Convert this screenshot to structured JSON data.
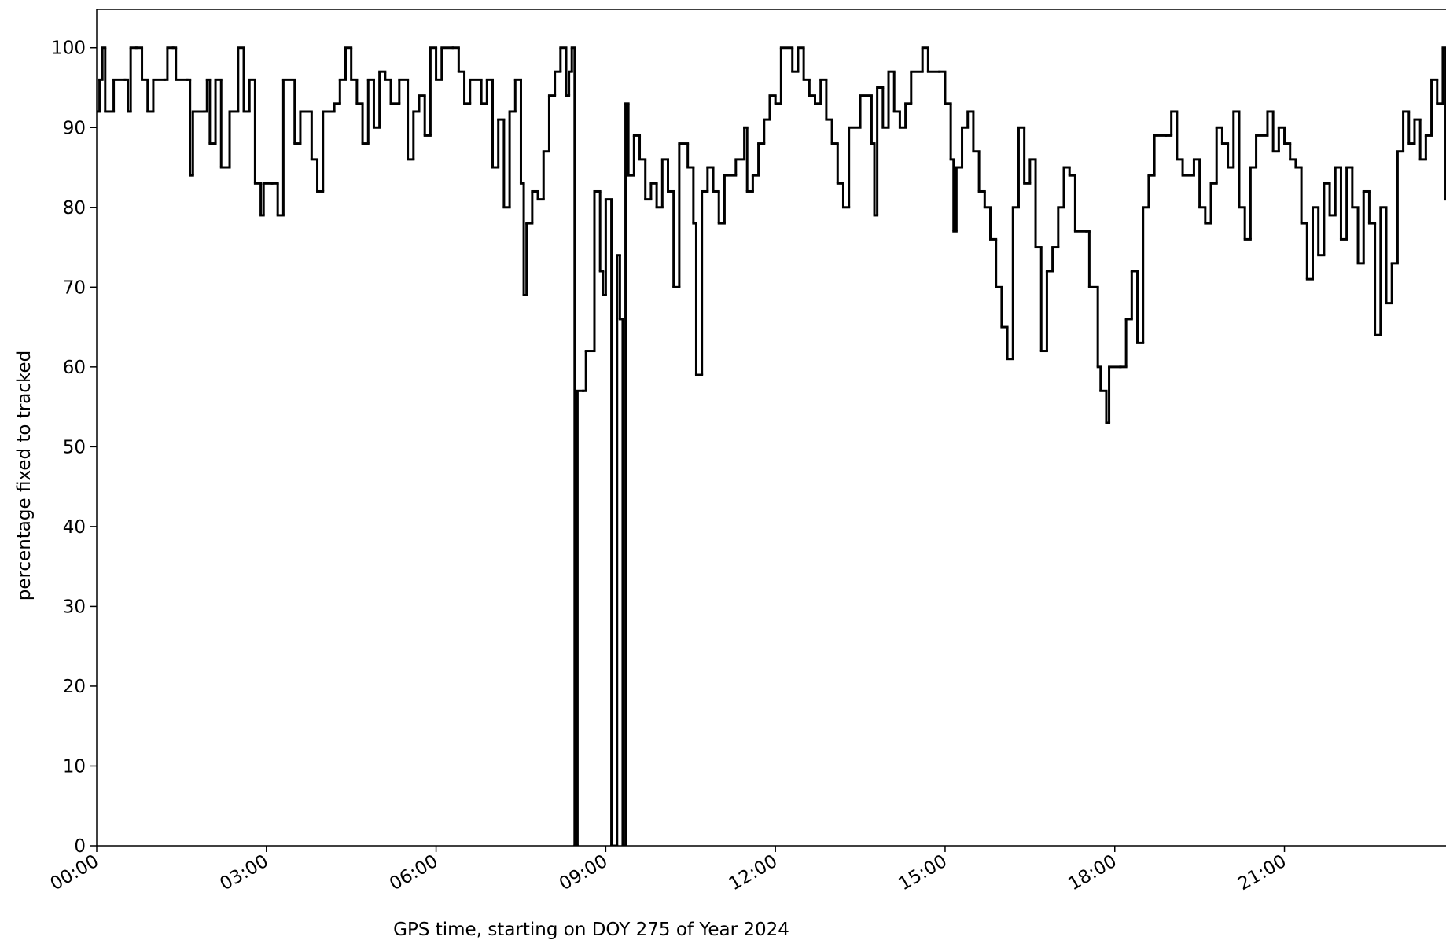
{
  "chart_data": {
    "type": "step",
    "xlabel": "GPS time, starting on DOY 275 of Year 2024",
    "ylabel": "percentage fixed to tracked",
    "color": "#000000",
    "xlim": [
      0,
      24
    ],
    "ylim": [
      0,
      104.8
    ],
    "xticks": [
      {
        "value": 0,
        "label": "00:00"
      },
      {
        "value": 3,
        "label": "03:00"
      },
      {
        "value": 6,
        "label": "06:00"
      },
      {
        "value": 9,
        "label": "09:00"
      },
      {
        "value": 12,
        "label": "12:00"
      },
      {
        "value": 15,
        "label": "15:00"
      },
      {
        "value": 18,
        "label": "18:00"
      },
      {
        "value": 21,
        "label": "21:00"
      }
    ],
    "yticks": [
      0,
      10,
      20,
      30,
      40,
      50,
      60,
      70,
      80,
      90,
      100
    ],
    "x": [
      0.0,
      0.05,
      0.1,
      0.15,
      0.3,
      0.5,
      0.55,
      0.6,
      0.7,
      0.8,
      0.9,
      1.0,
      1.2,
      1.25,
      1.35,
      1.4,
      1.6,
      1.65,
      1.7,
      1.9,
      1.95,
      2.0,
      2.1,
      2.2,
      2.35,
      2.5,
      2.6,
      2.7,
      2.8,
      2.9,
      2.95,
      3.1,
      3.2,
      3.3,
      3.5,
      3.6,
      3.8,
      3.9,
      4.0,
      4.2,
      4.3,
      4.4,
      4.5,
      4.6,
      4.7,
      4.8,
      4.9,
      5.0,
      5.1,
      5.2,
      5.35,
      5.5,
      5.6,
      5.7,
      5.8,
      5.9,
      6.0,
      6.1,
      6.3,
      6.4,
      6.5,
      6.6,
      6.8,
      6.9,
      7.0,
      7.1,
      7.2,
      7.3,
      7.4,
      7.5,
      7.55,
      7.6,
      7.7,
      7.8,
      7.9,
      8.0,
      8.1,
      8.2,
      8.3,
      8.35,
      8.4,
      8.45,
      8.5,
      8.6,
      8.65,
      8.8,
      8.9,
      8.95,
      9.0,
      9.1,
      9.2,
      9.25,
      9.3,
      9.35,
      9.4,
      9.5,
      9.6,
      9.7,
      9.8,
      9.9,
      10.0,
      10.1,
      10.2,
      10.3,
      10.45,
      10.55,
      10.6,
      10.7,
      10.8,
      10.9,
      11.0,
      11.1,
      11.3,
      11.45,
      11.5,
      11.6,
      11.7,
      11.8,
      11.9,
      12.0,
      12.1,
      12.3,
      12.4,
      12.5,
      12.6,
      12.7,
      12.8,
      12.9,
      13.0,
      13.1,
      13.2,
      13.3,
      13.5,
      13.7,
      13.75,
      13.8,
      13.9,
      14.0,
      14.1,
      14.2,
      14.3,
      14.4,
      14.6,
      14.7,
      14.9,
      15.0,
      15.1,
      15.15,
      15.2,
      15.3,
      15.4,
      15.5,
      15.6,
      15.7,
      15.8,
      15.9,
      16.0,
      16.1,
      16.2,
      16.3,
      16.4,
      16.5,
      16.6,
      16.7,
      16.8,
      16.9,
      17.0,
      17.1,
      17.2,
      17.3,
      17.5,
      17.55,
      17.7,
      17.75,
      17.85,
      17.9,
      18.1,
      18.2,
      18.3,
      18.4,
      18.5,
      18.6,
      18.7,
      18.9,
      19.0,
      19.1,
      19.2,
      19.4,
      19.5,
      19.6,
      19.7,
      19.8,
      19.9,
      20.0,
      20.1,
      20.2,
      20.3,
      20.4,
      20.5,
      20.7,
      20.8,
      20.9,
      21.0,
      21.1,
      21.2,
      21.3,
      21.4,
      21.5,
      21.6,
      21.7,
      21.8,
      21.9,
      22.0,
      22.1,
      22.2,
      22.3,
      22.4,
      22.5,
      22.6,
      22.7,
      22.8,
      22.9,
      23.0,
      23.1,
      23.2,
      23.3,
      23.4,
      23.5,
      23.6,
      23.7,
      23.8,
      23.85
    ],
    "values": [
      92,
      96,
      100,
      92,
      96,
      96,
      92,
      100,
      100,
      96,
      92,
      96,
      96,
      100,
      100,
      96,
      96,
      84,
      92,
      92,
      96,
      88,
      96,
      85,
      92,
      100,
      92,
      96,
      83,
      79,
      83,
      83,
      79,
      96,
      88,
      92,
      86,
      82,
      92,
      93,
      96,
      100,
      96,
      93,
      88,
      96,
      90,
      97,
      96,
      93,
      96,
      86,
      92,
      94,
      89,
      100,
      96,
      100,
      100,
      97,
      93,
      96,
      93,
      96,
      85,
      91,
      80,
      92,
      96,
      83,
      69,
      78,
      82,
      81,
      87,
      94,
      97,
      100,
      94,
      97,
      100,
      0,
      57,
      57,
      62,
      82,
      72,
      69,
      81,
      0,
      74,
      66,
      0,
      93,
      84,
      89,
      86,
      81,
      83,
      80,
      86,
      82,
      70,
      88,
      85,
      78,
      59,
      82,
      85,
      82,
      78,
      84,
      86,
      90,
      82,
      84,
      88,
      91,
      94,
      93,
      100,
      97,
      100,
      96,
      94,
      93,
      96,
      91,
      88,
      83,
      80,
      90,
      94,
      88,
      79,
      95,
      90,
      97,
      92,
      90,
      93,
      97,
      100,
      97,
      97,
      93,
      86,
      77,
      85,
      90,
      92,
      87,
      82,
      80,
      76,
      70,
      65,
      61,
      80,
      90,
      83,
      86,
      75,
      62,
      72,
      75,
      80,
      85,
      84,
      77,
      77,
      70,
      60,
      57,
      53,
      60,
      60,
      66,
      72,
      63,
      80,
      84,
      89,
      89,
      92,
      86,
      84,
      86,
      80,
      78,
      83,
      90,
      88,
      85,
      92,
      80,
      76,
      85,
      89,
      92,
      87,
      90,
      88,
      86,
      85,
      78,
      71,
      80,
      74,
      83,
      79,
      85,
      76,
      85,
      80,
      73,
      82,
      78,
      64,
      80,
      68,
      73,
      87,
      92,
      88,
      91,
      86,
      89,
      96,
      93,
      100,
      81
    ]
  }
}
